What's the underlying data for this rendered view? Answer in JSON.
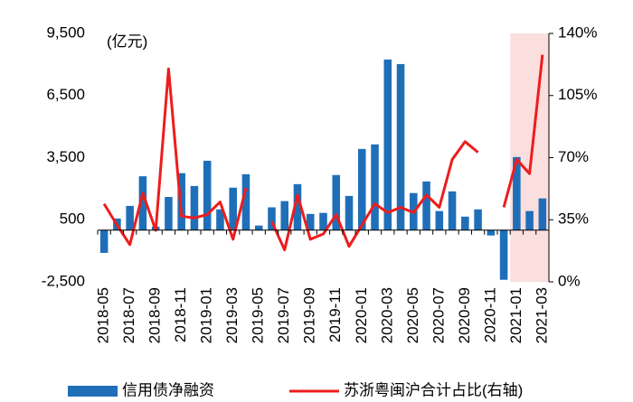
{
  "chart_data": {
    "type": "bar_line_dual",
    "annotation": "(亿元)",
    "categories": [
      "2018-05",
      null,
      "2018-07",
      null,
      "2018-09",
      null,
      "2018-11",
      null,
      "2019-01",
      null,
      "2019-03",
      null,
      "2019-05",
      null,
      "2019-07",
      null,
      "2019-09",
      null,
      "2019-11",
      null,
      "2020-01",
      null,
      "2020-03",
      null,
      "2020-05",
      null,
      "2020-07",
      null,
      "2020-09",
      null,
      "2020-11",
      null,
      "2021-01",
      null,
      "2021-03"
    ],
    "series": [
      {
        "name": "信用债净融资",
        "type": "bar",
        "color": "#1f6fb8",
        "values": [
          -1100,
          560,
          1170,
          2600,
          170,
          1600,
          2750,
          2130,
          3350,
          1000,
          2050,
          2700,
          220,
          1100,
          1400,
          2220,
          780,
          830,
          2660,
          1650,
          3920,
          4140,
          8240,
          8020,
          1790,
          2350,
          920,
          1870,
          650,
          1000,
          -260,
          -2400,
          3530,
          920,
          1530
        ]
      },
      {
        "name": "苏浙粤闽沪合计占比(右轴)",
        "type": "line",
        "axis": "y2",
        "color": "#ee1c1c",
        "values": [
          44,
          32,
          21,
          50,
          29,
          120,
          37,
          36,
          38,
          45,
          24,
          53,
          null,
          34,
          18,
          49,
          24,
          27,
          38,
          20,
          32,
          44,
          39,
          42,
          39,
          49,
          42,
          69,
          79,
          73,
          null,
          42,
          69,
          61,
          128
        ]
      }
    ],
    "ylim": [
      -2500,
      9500
    ],
    "yticks": [
      {
        "value": -2500,
        "label": "-2,500"
      },
      500,
      {
        "value": 3500,
        "label": "3,500"
      },
      {
        "value": 6500,
        "label": "6,500"
      },
      {
        "value": 9500,
        "label": "9,500"
      }
    ],
    "y2lim": [
      0,
      140
    ],
    "y2ticks": [
      {
        "value": 0,
        "label": "0%"
      },
      {
        "value": 35,
        "label": "35%"
      },
      {
        "value": 70,
        "label": "70%"
      },
      {
        "value": 105,
        "label": "105%"
      },
      {
        "value": 140,
        "label": "140%"
      }
    ],
    "highlight": {
      "from": 32,
      "to": 34,
      "color": "#fbdede"
    },
    "grid": false
  }
}
